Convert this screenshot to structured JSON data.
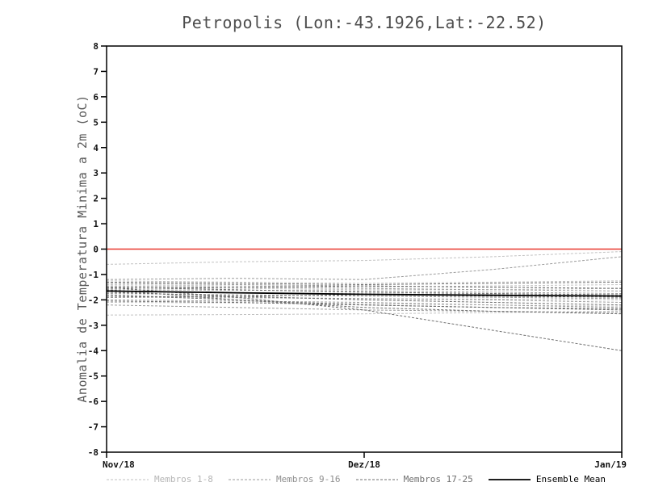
{
  "chart_data": {
    "type": "line",
    "title": "Petropolis (Lon:-43.1926,Lat:-22.52)",
    "ylabel": "Anomalia de Temperatura Minima a 2m (oC)",
    "ylim": [
      -8,
      8
    ],
    "ytick_step": 1,
    "x_ticks": [
      "Nov/18",
      "Dez/18",
      "Jan/19"
    ],
    "grid": false,
    "legend_position": "bottom",
    "zero_line_color": "#e8372d",
    "groups": [
      {
        "name": "Membros 1-8",
        "color": "#c2c2c2",
        "label_color": "#b5b5b5",
        "dash": "3 2",
        "width": 1,
        "series": [
          [
            -0.6,
            -0.5,
            -0.45,
            -0.3,
            -0.1
          ],
          [
            -1.25,
            -1.3,
            -1.35,
            -1.3,
            -1.25
          ],
          [
            -1.4,
            -1.45,
            -1.5,
            -1.45,
            -1.4
          ],
          [
            -1.5,
            -1.55,
            -1.6,
            -1.6,
            -1.55
          ],
          [
            -1.7,
            -1.72,
            -1.75,
            -1.78,
            -1.8
          ],
          [
            -1.9,
            -1.92,
            -1.95,
            -1.97,
            -2.0
          ],
          [
            -2.1,
            -2.12,
            -2.15,
            -2.2,
            -2.25
          ],
          [
            -2.6,
            -2.58,
            -2.55,
            -2.5,
            -2.45
          ]
        ]
      },
      {
        "name": "Membros 9-16",
        "color": "#9b9b9b",
        "label_color": "#8f8f8f",
        "dash": "3 2",
        "width": 1,
        "series": [
          [
            -1.2,
            -1.15,
            -1.2,
            -0.8,
            -0.3
          ],
          [
            -1.35,
            -1.4,
            -1.45,
            -1.5,
            -1.55
          ],
          [
            -1.45,
            -1.5,
            -1.55,
            -1.6,
            -1.65
          ],
          [
            -1.6,
            -1.62,
            -1.65,
            -1.7,
            -1.75
          ],
          [
            -1.75,
            -1.8,
            -1.85,
            -1.9,
            -1.95
          ],
          [
            -1.85,
            -1.9,
            -1.95,
            -2.0,
            -2.1
          ],
          [
            -2.0,
            -2.05,
            -2.1,
            -2.2,
            -2.3
          ],
          [
            -2.2,
            -2.3,
            -2.4,
            -2.45,
            -2.5
          ]
        ]
      },
      {
        "name": "Membros 17-25",
        "color": "#6f6f6f",
        "label_color": "#6f6f6f",
        "dash": "3 2",
        "width": 1,
        "series": [
          [
            -1.3,
            -1.35,
            -1.4,
            -1.35,
            -1.3
          ],
          [
            -1.5,
            -1.6,
            -1.7,
            -1.75,
            -1.8
          ],
          [
            -1.55,
            -1.5,
            -1.45,
            -1.5,
            -1.55
          ],
          [
            -1.7,
            -1.85,
            -2.0,
            -2.1,
            -2.2
          ],
          [
            -1.8,
            -2.0,
            -2.2,
            -2.3,
            -2.4
          ],
          [
            -1.9,
            -1.85,
            -1.8,
            -1.85,
            -1.9
          ],
          [
            -2.05,
            -2.1,
            -2.2,
            -2.3,
            -2.35
          ],
          [
            -1.6,
            -2.0,
            -2.3,
            -2.45,
            -2.55
          ],
          [
            -1.5,
            -1.9,
            -2.4,
            -3.2,
            -4.0
          ]
        ]
      },
      {
        "name": "Ensemble Mean",
        "color": "#000000",
        "label_color": "#000000",
        "dash": null,
        "width": 1.8,
        "series": [
          [
            -1.65,
            -1.72,
            -1.78,
            -1.82,
            -1.85
          ]
        ]
      }
    ]
  }
}
